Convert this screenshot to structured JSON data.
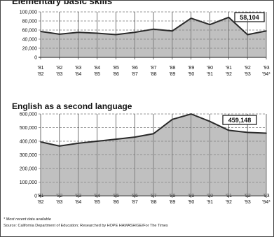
{
  "footnote": {
    "note": "* Most recent data available",
    "source": "Source: California Department of Education; Researched by HOPE HAMASHIGE/For The Times"
  },
  "colors": {
    "line": "#2a2a2a",
    "fill": "#8c8c8c",
    "grid": "#333333"
  },
  "chart_data": [
    {
      "type": "area",
      "title": "Elementary basic skills",
      "x": [
        "'81-'82",
        "'82-'83",
        "'83-'84",
        "'84-'85",
        "'85-'86",
        "'86-'87",
        "'87-'88",
        "'88-'89",
        "'89-'90",
        "'90-'91",
        "'91-'92",
        "'92-'93",
        "'93-'94*"
      ],
      "series": [
        {
          "values": [
            57000,
            51000,
            55000,
            53000,
            50000,
            55000,
            62000,
            58000,
            86000,
            72000,
            88000,
            50000,
            58104
          ]
        }
      ],
      "ylim": [
        0,
        100000
      ],
      "yticks": [
        0,
        20000,
        40000,
        60000,
        80000,
        100000
      ],
      "ytick_labels": [
        "0",
        "20,000",
        "40,000",
        "60,000",
        "80,000",
        "100,000"
      ],
      "callout": "58,104",
      "grid": true
    },
    {
      "type": "area",
      "title": "English as a second language",
      "x": [
        "'81-'82",
        "'82-'83",
        "'83-'84",
        "'84-'85",
        "'85-'86",
        "'86-'87",
        "'87-'88",
        "'88-'89",
        "'89-'90",
        "'90-'91",
        "'91-'92",
        "'92-'93",
        "'93-'94*"
      ],
      "series": [
        {
          "values": [
            395000,
            365000,
            385000,
            400000,
            415000,
            430000,
            455000,
            560000,
            600000,
            545000,
            480000,
            465000,
            459148
          ]
        }
      ],
      "ylim": [
        0,
        600000
      ],
      "yticks": [
        0,
        100000,
        200000,
        300000,
        400000,
        500000,
        600000
      ],
      "ytick_labels": [
        "0",
        "100,000",
        "200,000",
        "300,000",
        "400,000",
        "500,000",
        "600,000"
      ],
      "callout": "459,148",
      "grid": true
    }
  ]
}
